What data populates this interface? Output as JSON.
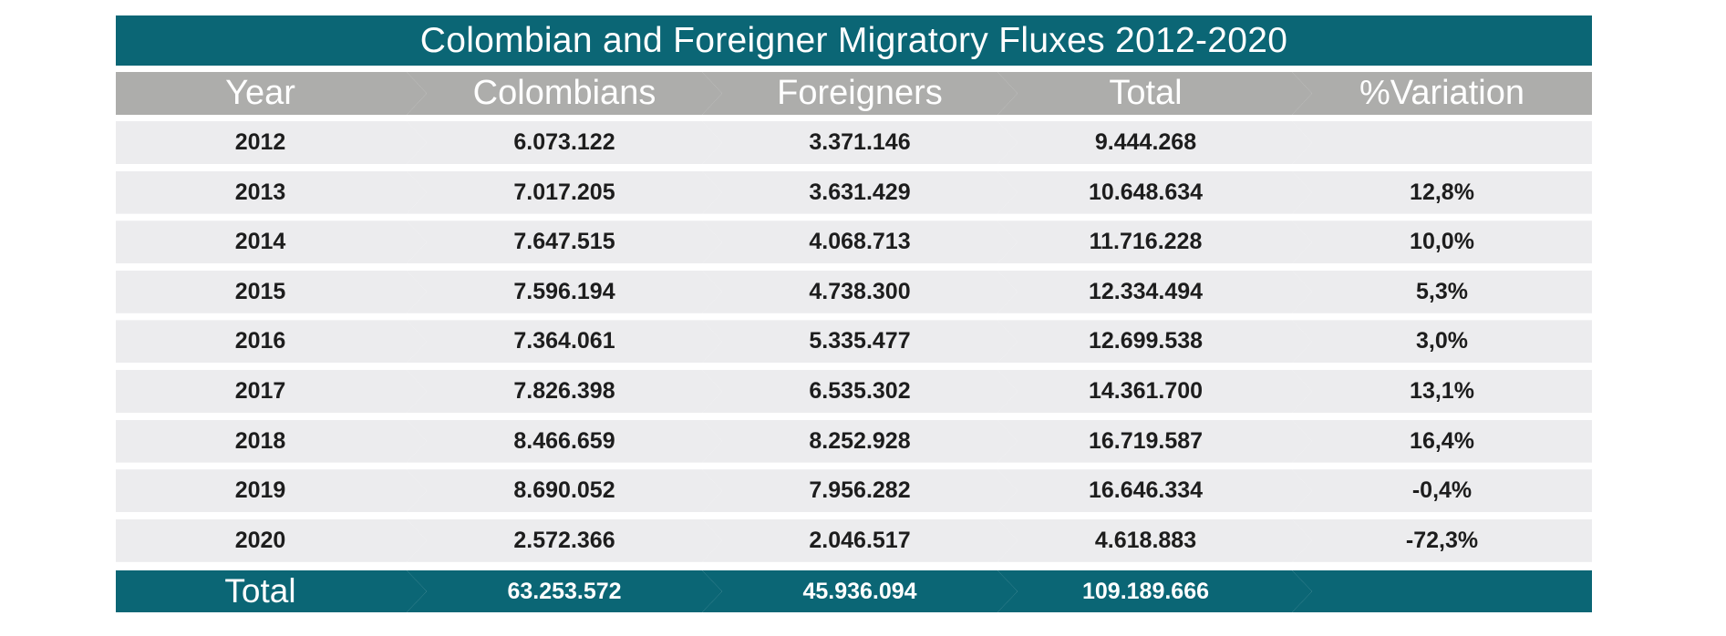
{
  "chart_data": {
    "type": "table",
    "title": "Colombian and Foreigner Migratory Fluxes 2012-2020",
    "columns": [
      "Year",
      "Colombians",
      "Foreigners",
      "Total",
      "%Variation"
    ],
    "rows": [
      [
        "2012",
        "6.073.122",
        "3.371.146",
        "9.444.268",
        ""
      ],
      [
        "2013",
        "7.017.205",
        "3.631.429",
        "10.648.634",
        "12,8%"
      ],
      [
        "2014",
        "7.647.515",
        "4.068.713",
        "11.716.228",
        "10,0%"
      ],
      [
        "2015",
        "7.596.194",
        "4.738.300",
        "12.334.494",
        "5,3%"
      ],
      [
        "2016",
        "7.364.061",
        "5.335.477",
        "12.699.538",
        "3,0%"
      ],
      [
        "2017",
        "7.826.398",
        "6.535.302",
        "14.361.700",
        "13,1%"
      ],
      [
        "2018",
        "8.466.659",
        "8.252.928",
        "16.719.587",
        "16,4%"
      ],
      [
        "2019",
        "8.690.052",
        "7.956.282",
        "16.646.334",
        "-0,4%"
      ],
      [
        "2020",
        "2.572.366",
        "2.046.517",
        "4.618.883",
        "-72,3%"
      ]
    ],
    "total_row": [
      "Total",
      "63.253.572",
      "45.936.094",
      "109.189.666",
      ""
    ]
  },
  "colors": {
    "title_bg": "#0b6675",
    "header_bg": "#adadab",
    "row_bg": "#ececee",
    "total_bg": "#0b6675",
    "text_light": "#ffffff",
    "text_dark": "#1d1d1d"
  }
}
